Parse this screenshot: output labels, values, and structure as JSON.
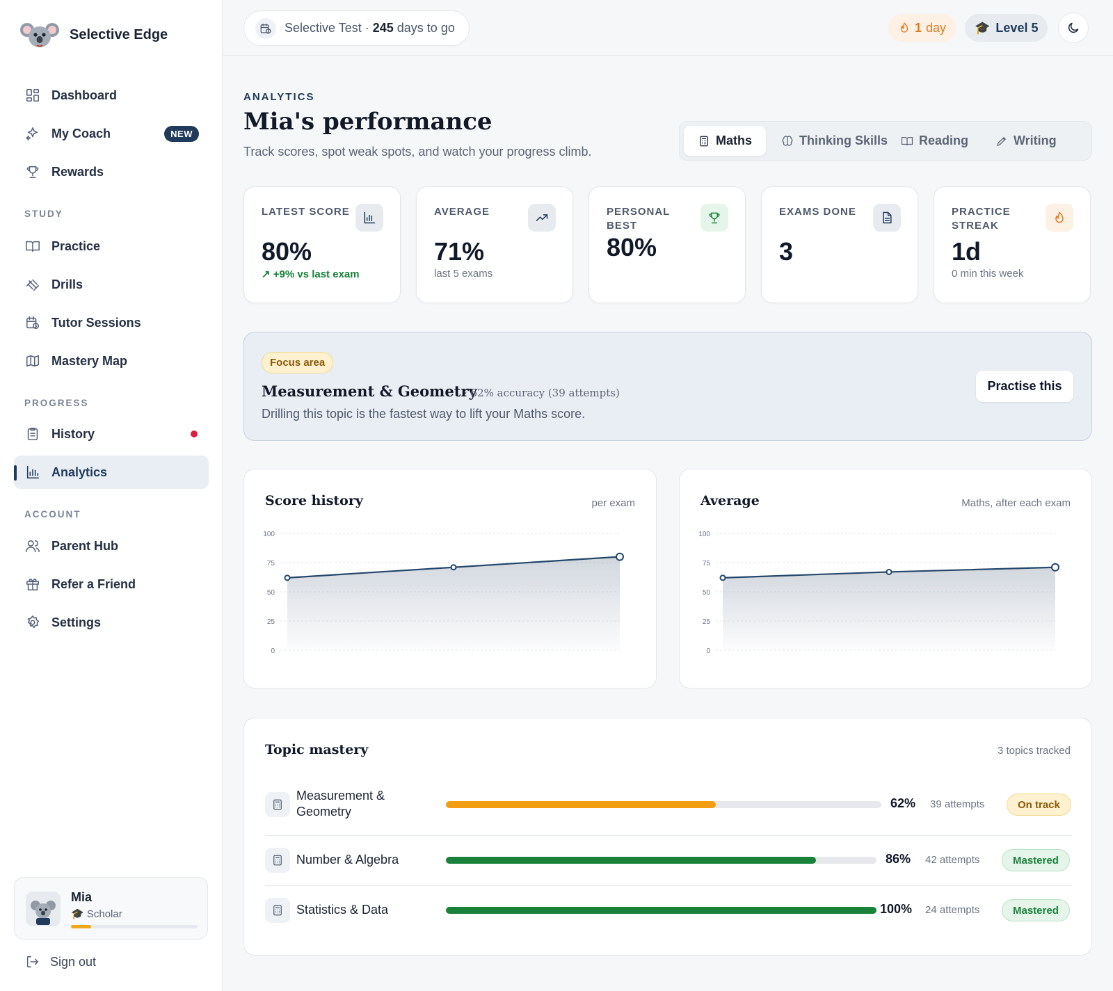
{
  "brand": {
    "name": "Selective Edge"
  },
  "nav": {
    "main": [
      {
        "label": "Dashboard"
      },
      {
        "label": "My Coach",
        "badge": "NEW"
      },
      {
        "label": "Rewards"
      }
    ],
    "study_label": "STUDY",
    "study": [
      {
        "label": "Practice"
      },
      {
        "label": "Drills"
      },
      {
        "label": "Tutor Sessions"
      },
      {
        "label": "Mastery Map"
      }
    ],
    "progress_label": "PROGRESS",
    "progress": [
      {
        "label": "History"
      },
      {
        "label": "Analytics"
      }
    ],
    "account_label": "ACCOUNT",
    "account": [
      {
        "label": "Parent Hub"
      },
      {
        "label": "Refer a Friend"
      },
      {
        "label": "Settings"
      }
    ]
  },
  "user": {
    "name": "Mia",
    "role": "🎓 Scholar",
    "progress": 0.16
  },
  "signout": "Sign out",
  "topbar": {
    "countdown_prefix": "Selective Test · ",
    "countdown_days": "245",
    "countdown_suffix": " days to go",
    "streak_value": "1",
    "streak_unit": " day",
    "level": "Level 5"
  },
  "header": {
    "eyebrow": "ANALYTICS",
    "title": "Mia's performance",
    "subtitle": "Track scores, spot weak spots, and watch your progress climb."
  },
  "tabs": [
    "Maths",
    "Thinking Skills",
    "Reading",
    "Writing"
  ],
  "stats": [
    {
      "label": "LATEST SCORE",
      "value": "80%",
      "note": "+9% vs last exam"
    },
    {
      "label": "AVERAGE",
      "value": "71%",
      "note": "last 5 exams"
    },
    {
      "label": "PERSONAL BEST",
      "value": "80%",
      "note": ""
    },
    {
      "label": "EXAMS DONE",
      "value": "3",
      "note": ""
    },
    {
      "label": "PRACTICE STREAK",
      "value": "1d",
      "note": "0 min this week"
    }
  ],
  "focus": {
    "tag": "Focus area",
    "topic": "Measurement & Geometry",
    "meta": "· 62% accuracy (39 attempts)",
    "desc": "Drilling this topic is the fastest way to lift your Maths score.",
    "button": "Practise this"
  },
  "charts": {
    "score": {
      "title": "Score history",
      "sub": "per exam"
    },
    "average": {
      "title": "Average",
      "sub": "Maths, after each exam"
    }
  },
  "chart_data": [
    {
      "type": "area",
      "title": "Score history",
      "x": [
        1,
        2,
        3
      ],
      "values": [
        62,
        71,
        80
      ],
      "ylim": [
        0,
        100
      ],
      "yticks": [
        "100",
        "75",
        "50",
        "25",
        "0"
      ],
      "grid": true
    },
    {
      "type": "area",
      "title": "Average",
      "x": [
        1,
        2,
        3
      ],
      "values": [
        62,
        67,
        71
      ],
      "ylim": [
        0,
        100
      ],
      "yticks": [
        "100",
        "75",
        "50",
        "25",
        "0"
      ],
      "grid": true
    }
  ],
  "mastery": {
    "title": "Topic mastery",
    "sub": "3 topics tracked",
    "rows": [
      {
        "name": "Measurement & Geometry",
        "pct": "62%",
        "value": 0.62,
        "attempts": "39 attempts",
        "status": "On track",
        "color": "#f29d12"
      },
      {
        "name": "Number & Algebra",
        "pct": "86%",
        "value": 0.86,
        "attempts": "42 attempts",
        "status": "Mastered",
        "color": "#18813a"
      },
      {
        "name": "Statistics & Data",
        "pct": "100%",
        "value": 1.0,
        "attempts": "24 attempts",
        "status": "Mastered",
        "color": "#18813a"
      }
    ]
  },
  "colors": {
    "accent": "#1f3a5a",
    "line": "#24476b",
    "orange": "#e07a1f",
    "green": "#18813a"
  }
}
